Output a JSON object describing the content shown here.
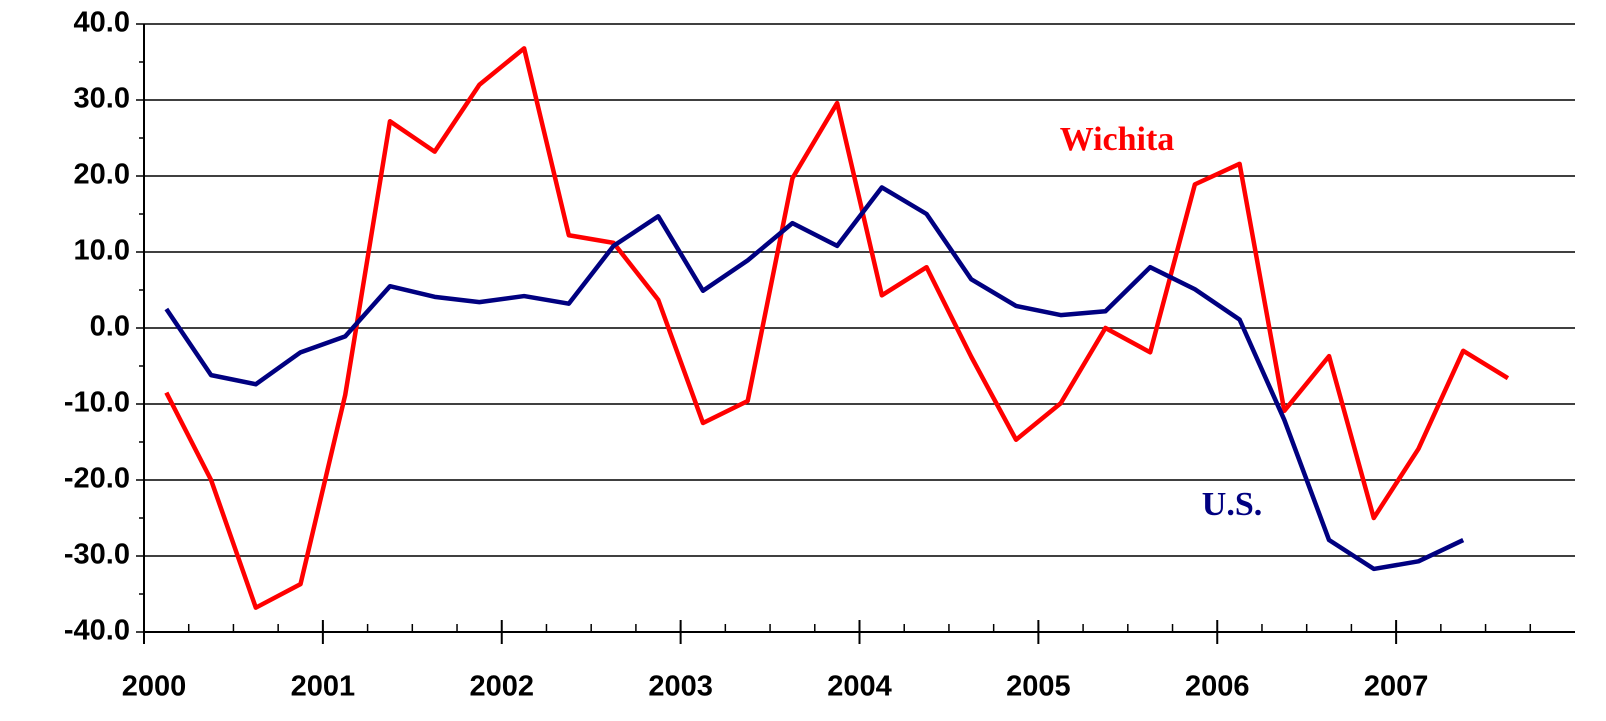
{
  "chart_data": {
    "type": "line",
    "x": [
      2000.125,
      2000.375,
      2000.625,
      2000.875,
      2001.125,
      2001.375,
      2001.625,
      2001.875,
      2002.125,
      2002.375,
      2002.625,
      2002.875,
      2003.125,
      2003.375,
      2003.625,
      2003.875,
      2004.125,
      2004.375,
      2004.625,
      2004.875,
      2005.125,
      2005.375,
      2005.625,
      2005.875,
      2006.125,
      2006.375,
      2006.625,
      2006.875,
      2007.125,
      2007.375,
      2007.625
    ],
    "series": [
      {
        "name": "Wichita",
        "color": "#ff0000",
        "values": [
          -8.5,
          -20,
          -36.8,
          -33.7,
          -8.8,
          27.2,
          23.2,
          32,
          36.8,
          12.2,
          11.2,
          3.7,
          -12.5,
          -9.6,
          19.7,
          29.6,
          4.3,
          8,
          -3.8,
          -14.7,
          -9.9,
          0,
          -3.2,
          18.9,
          21.6,
          -10.9,
          -3.7,
          -25,
          -15.9,
          -3,
          -6.6
        ]
      },
      {
        "name": "U.S.",
        "color": "#000080",
        "values": [
          2.5,
          -6.2,
          -7.4,
          -3.2,
          -1.1,
          5.5,
          4.1,
          3.4,
          4.2,
          3.2,
          10.8,
          14.7,
          4.9,
          8.9,
          13.8,
          10.8,
          18.5,
          15,
          6.4,
          2.9,
          1.7,
          2.2,
          8,
          5.1,
          1.1,
          -12.1,
          -27.9,
          -31.7,
          -30.7,
          -27.9,
          null
        ]
      }
    ],
    "xlim": [
      2000,
      2008
    ],
    "xticks": [
      2000,
      2001,
      2002,
      2003,
      2004,
      2005,
      2006,
      2007
    ],
    "ylim": [
      -40,
      40
    ],
    "yticks": [
      {
        "value": -40,
        "label": "-40.0"
      },
      {
        "value": -30,
        "label": "-30.0"
      },
      {
        "value": -20,
        "label": "-20.0"
      },
      {
        "value": -10,
        "label": "-10.0"
      },
      {
        "value": 0,
        "label": "0.0"
      },
      {
        "value": 10,
        "label": "10.0"
      },
      {
        "value": 20,
        "label": "20.0"
      },
      {
        "value": 30,
        "label": "30.0"
      },
      {
        "value": 40,
        "label": "40.0"
      }
    ],
    "grid": true
  }
}
